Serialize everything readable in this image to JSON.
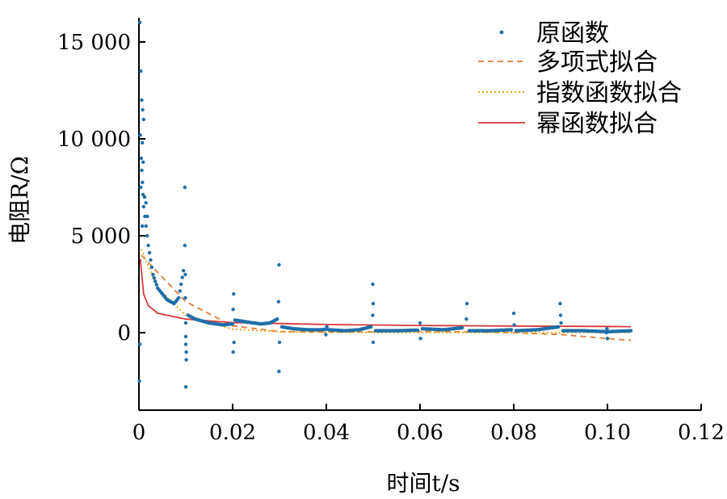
{
  "chart_data": {
    "type": "scatter",
    "xlabel": "时间t/s",
    "ylabel": "电阻R/Ω",
    "xlim": [
      0,
      0.12
    ],
    "ylim": [
      -4000,
      16000
    ],
    "x_ticks": [
      "0",
      "0.02",
      "0.04",
      "0.06",
      "0.08",
      "0.10",
      "0.12"
    ],
    "y_ticks": [
      "15 000",
      "10 000",
      "5 000",
      "0"
    ],
    "legend_position": "top-right",
    "colors": {
      "raw": "#1f6fa8",
      "poly": "#e07b39",
      "exp": "#e6a817",
      "power": "#d9383a"
    },
    "series": [
      {
        "name": "原函数",
        "kind": "points"
      },
      {
        "name": "多项式拟合",
        "kind": "dashed-line",
        "x": [
          0.0005,
          0.01,
          0.02,
          0.03,
          0.04,
          0.05,
          0.06,
          0.07,
          0.08,
          0.09,
          0.1,
          0.105
        ],
        "y": [
          4000,
          1600,
          350,
          60,
          20,
          40,
          60,
          40,
          0,
          -100,
          -300,
          -400
        ]
      },
      {
        "name": "指数函数拟合",
        "kind": "dotted-line",
        "x": [
          0.0005,
          0.004,
          0.01,
          0.02,
          0.03,
          0.04,
          0.05,
          0.06,
          0.08,
          0.1,
          0.105
        ],
        "y": [
          4300,
          2300,
          900,
          180,
          50,
          20,
          10,
          10,
          10,
          10,
          10
        ]
      },
      {
        "name": "幂函数拟合",
        "kind": "solid-line",
        "x": [
          0.0003,
          0.001,
          0.002,
          0.004,
          0.01,
          0.02,
          0.04,
          0.06,
          0.08,
          0.1,
          0.105
        ],
        "y": [
          3800,
          2000,
          1400,
          1000,
          700,
          520,
          420,
          370,
          340,
          320,
          310
        ]
      }
    ],
    "raw_segments": [
      [
        [
          0.0005,
          9000
        ],
        [
          0.001,
          6500
        ],
        [
          0.002,
          4500
        ],
        [
          0.003,
          3000
        ],
        [
          0.004,
          2300
        ],
        [
          0.006,
          1700
        ],
        [
          0.0075,
          1500
        ],
        [
          0.0085,
          1800
        ],
        [
          0.0095,
          3200
        ]
      ],
      [
        [
          0.0105,
          900
        ],
        [
          0.012,
          700
        ],
        [
          0.015,
          500
        ],
        [
          0.018,
          400
        ],
        [
          0.02,
          450
        ]
      ],
      [
        [
          0.0205,
          650
        ],
        [
          0.023,
          550
        ],
        [
          0.026,
          450
        ],
        [
          0.028,
          500
        ],
        [
          0.0295,
          700
        ]
      ],
      [
        [
          0.0305,
          300
        ],
        [
          0.033,
          200
        ],
        [
          0.036,
          150
        ],
        [
          0.039,
          150
        ],
        [
          0.04,
          180
        ]
      ],
      [
        [
          0.0405,
          150
        ],
        [
          0.044,
          100
        ],
        [
          0.047,
          150
        ],
        [
          0.0495,
          300
        ]
      ],
      [
        [
          0.0505,
          100
        ],
        [
          0.055,
          100
        ],
        [
          0.0595,
          130
        ]
      ],
      [
        [
          0.0605,
          200
        ],
        [
          0.065,
          150
        ],
        [
          0.069,
          250
        ]
      ],
      [
        [
          0.0705,
          100
        ],
        [
          0.075,
          100
        ],
        [
          0.0795,
          150
        ]
      ],
      [
        [
          0.0805,
          100
        ],
        [
          0.085,
          150
        ],
        [
          0.0895,
          300
        ]
      ],
      [
        [
          0.0905,
          100
        ],
        [
          0.095,
          100
        ],
        [
          0.1,
          50
        ],
        [
          0.105,
          100
        ]
      ]
    ],
    "raw_outliers": [
      [
        0.0002,
        16000
      ],
      [
        0.0004,
        13500
      ],
      [
        0.0006,
        12000
      ],
      [
        0.0008,
        11500
      ],
      [
        0.001,
        11000
      ],
      [
        0.0003,
        10200
      ],
      [
        0.0007,
        9800
      ],
      [
        0.0009,
        8800
      ],
      [
        0.0004,
        7500
      ],
      [
        0.0012,
        7000
      ],
      [
        0.0015,
        6700
      ],
      [
        0.0018,
        6000
      ],
      [
        0.0002,
        -600
      ],
      [
        0.0001,
        -2500
      ],
      [
        0.0007,
        5500
      ],
      [
        0.0098,
        7500
      ],
      [
        0.0098,
        4500
      ],
      [
        0.0099,
        3000
      ],
      [
        0.0099,
        1800
      ],
      [
        0.01,
        500
      ],
      [
        0.01,
        -200
      ],
      [
        0.01,
        -600
      ],
      [
        0.0101,
        -1000
      ],
      [
        0.0101,
        -1400
      ],
      [
        0.01,
        -2800
      ],
      [
        0.0202,
        2000
      ],
      [
        0.0201,
        1200
      ],
      [
        0.0203,
        -500
      ],
      [
        0.0201,
        -1000
      ],
      [
        0.0299,
        3500
      ],
      [
        0.0298,
        1600
      ],
      [
        0.03,
        -500
      ],
      [
        0.0299,
        -2000
      ],
      [
        0.0401,
        300
      ],
      [
        0.0399,
        -100
      ],
      [
        0.0499,
        2500
      ],
      [
        0.05,
        1500
      ],
      [
        0.0499,
        900
      ],
      [
        0.05,
        -500
      ],
      [
        0.06,
        500
      ],
      [
        0.0601,
        -300
      ],
      [
        0.07,
        1500
      ],
      [
        0.0699,
        700
      ],
      [
        0.08,
        1000
      ],
      [
        0.0801,
        400
      ],
      [
        0.0899,
        1500
      ],
      [
        0.09,
        900
      ],
      [
        0.0901,
        500
      ],
      [
        0.0998,
        0
      ],
      [
        0.1,
        -300
      ],
      [
        0.0999,
        200
      ]
    ]
  }
}
